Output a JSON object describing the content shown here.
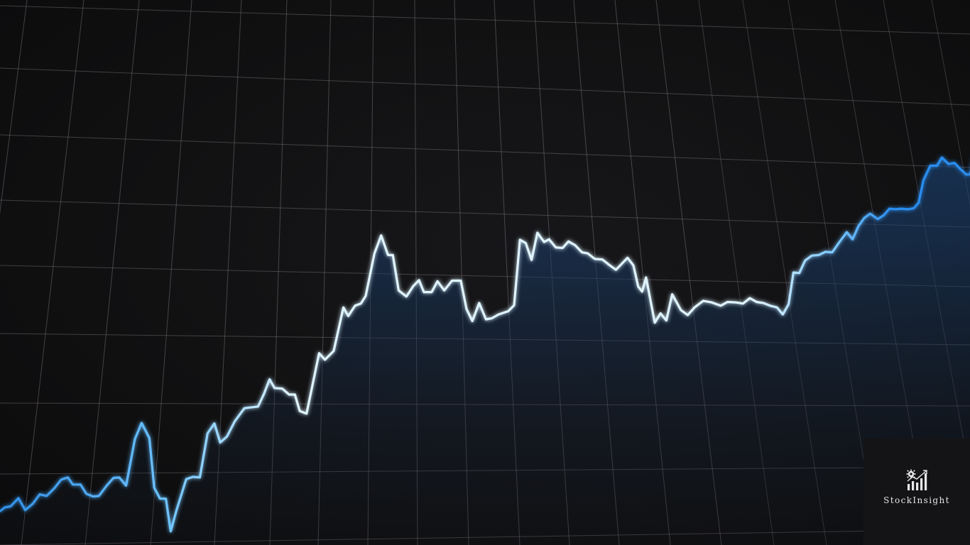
{
  "chart_data": {
    "type": "area",
    "title": "",
    "xlabel": "",
    "ylabel": "",
    "grid": true,
    "legend": "none",
    "xlim": [
      0,
      100
    ],
    "ylim": [
      0,
      100
    ],
    "series": [
      {
        "color_line_start": "#2f8fe6",
        "color_line_mid": "#dff4ff",
        "color_line_end": "#2a8ef0",
        "color_fill": "#1e4f8a",
        "points": [
          [
            0.0,
            6.2
          ],
          [
            0.5,
            6.9
          ],
          [
            1.1,
            7.1
          ],
          [
            1.9,
            8.6
          ],
          [
            2.6,
            6.4
          ],
          [
            3.4,
            7.6
          ],
          [
            4.1,
            9.3
          ],
          [
            4.8,
            9.0
          ],
          [
            5.6,
            10.4
          ],
          [
            6.3,
            12.0
          ],
          [
            7.0,
            12.4
          ],
          [
            7.5,
            11.1
          ],
          [
            8.3,
            11.1
          ],
          [
            8.9,
            9.4
          ],
          [
            9.6,
            8.9
          ],
          [
            10.2,
            9.0
          ],
          [
            11.0,
            10.9
          ],
          [
            11.7,
            12.3
          ],
          [
            12.3,
            12.4
          ],
          [
            13.0,
            10.9
          ],
          [
            13.9,
            19.4
          ],
          [
            14.6,
            22.4
          ],
          [
            15.4,
            19.6
          ],
          [
            15.9,
            10.5
          ],
          [
            16.5,
            8.5
          ],
          [
            17.1,
            8.5
          ],
          [
            17.6,
            2.5
          ],
          [
            18.2,
            6.4
          ],
          [
            19.2,
            12.1
          ],
          [
            19.9,
            12.5
          ],
          [
            20.6,
            12.4
          ],
          [
            21.4,
            20.5
          ],
          [
            22.1,
            22.3
          ],
          [
            22.7,
            18.8
          ],
          [
            23.4,
            19.9
          ],
          [
            24.2,
            22.7
          ],
          [
            25.2,
            25.1
          ],
          [
            26.1,
            25.3
          ],
          [
            26.6,
            25.4
          ],
          [
            27.2,
            27.7
          ],
          [
            27.8,
            30.4
          ],
          [
            28.3,
            28.8
          ],
          [
            29.1,
            28.7
          ],
          [
            29.8,
            27.6
          ],
          [
            30.4,
            27.6
          ],
          [
            30.9,
            24.6
          ],
          [
            31.6,
            24.1
          ],
          [
            32.9,
            35.2
          ],
          [
            33.5,
            34.0
          ],
          [
            34.4,
            35.6
          ],
          [
            35.4,
            43.6
          ],
          [
            35.9,
            42.0
          ],
          [
            36.6,
            43.9
          ],
          [
            37.2,
            44.3
          ],
          [
            37.7,
            45.7
          ],
          [
            38.6,
            53.5
          ],
          [
            39.3,
            56.8
          ],
          [
            40.0,
            53.2
          ],
          [
            40.5,
            53.2
          ],
          [
            41.1,
            46.7
          ],
          [
            41.9,
            45.6
          ],
          [
            42.6,
            47.5
          ],
          [
            43.2,
            48.6
          ],
          [
            43.7,
            46.4
          ],
          [
            44.5,
            46.4
          ],
          [
            45.1,
            48.4
          ],
          [
            45.8,
            46.7
          ],
          [
            46.6,
            48.5
          ],
          [
            47.5,
            48.5
          ],
          [
            48.1,
            43.3
          ],
          [
            48.7,
            41.1
          ],
          [
            49.4,
            44.4
          ],
          [
            50.1,
            41.4
          ],
          [
            50.7,
            41.6
          ],
          [
            51.4,
            42.3
          ],
          [
            52.4,
            42.9
          ],
          [
            53.0,
            44.0
          ],
          [
            53.6,
            56.0
          ],
          [
            54.2,
            55.4
          ],
          [
            54.8,
            52.3
          ],
          [
            55.4,
            57.3
          ],
          [
            56.1,
            55.6
          ],
          [
            56.6,
            56.1
          ],
          [
            57.3,
            54.6
          ],
          [
            58.0,
            54.5
          ],
          [
            58.6,
            55.7
          ],
          [
            59.3,
            55.0
          ],
          [
            60.0,
            53.7
          ],
          [
            60.6,
            53.5
          ],
          [
            61.3,
            52.5
          ],
          [
            62.1,
            52.4
          ],
          [
            62.8,
            51.4
          ],
          [
            63.5,
            50.5
          ],
          [
            64.1,
            51.6
          ],
          [
            64.7,
            52.7
          ],
          [
            65.3,
            51.3
          ],
          [
            65.8,
            47.4
          ],
          [
            66.2,
            46.5
          ],
          [
            66.6,
            49.1
          ],
          [
            67.5,
            40.8
          ],
          [
            68.1,
            42.5
          ],
          [
            68.7,
            41.2
          ],
          [
            69.3,
            46.0
          ],
          [
            70.2,
            43.1
          ],
          [
            70.9,
            42.2
          ],
          [
            71.6,
            43.6
          ],
          [
            72.5,
            44.8
          ],
          [
            73.4,
            44.5
          ],
          [
            74.3,
            43.9
          ],
          [
            75.0,
            44.6
          ],
          [
            75.9,
            44.5
          ],
          [
            76.6,
            44.3
          ],
          [
            77.3,
            45.3
          ],
          [
            78.0,
            44.6
          ],
          [
            78.7,
            44.4
          ],
          [
            79.4,
            43.9
          ],
          [
            80.1,
            43.6
          ],
          [
            80.7,
            42.3
          ],
          [
            81.3,
            44.2
          ],
          [
            81.8,
            50.0
          ],
          [
            82.4,
            49.9
          ],
          [
            83.0,
            52.2
          ],
          [
            83.7,
            53.1
          ],
          [
            84.4,
            53.2
          ],
          [
            85.1,
            53.8
          ],
          [
            85.8,
            53.7
          ],
          [
            86.5,
            55.5
          ],
          [
            87.3,
            57.4
          ],
          [
            87.9,
            56.1
          ],
          [
            88.5,
            58.5
          ],
          [
            89.1,
            60.0
          ],
          [
            89.7,
            60.8
          ],
          [
            90.5,
            59.8
          ],
          [
            91.1,
            60.5
          ],
          [
            91.7,
            61.7
          ],
          [
            92.3,
            61.6
          ],
          [
            92.9,
            61.7
          ],
          [
            93.6,
            61.6
          ],
          [
            94.2,
            61.8
          ],
          [
            94.7,
            62.8
          ],
          [
            95.2,
            66.9
          ],
          [
            95.9,
            69.6
          ],
          [
            96.6,
            69.6
          ],
          [
            97.1,
            71.1
          ],
          [
            97.8,
            69.9
          ],
          [
            98.4,
            70.1
          ],
          [
            99.0,
            69.0
          ],
          [
            99.6,
            68.0
          ],
          [
            100.0,
            68.0
          ],
          [
            100.6,
            72.3
          ],
          [
            101.3,
            72.4
          ],
          [
            101.9,
            73.5
          ],
          [
            102.6,
            74.1
          ],
          [
            103.2,
            75.8
          ],
          [
            103.9,
            74.4
          ]
        ]
      }
    ]
  },
  "brand": {
    "name": "StockInsight",
    "logo_icon": "gear-and-bar-chart-icon",
    "color_text": "#e6e6e6",
    "color_panel": "#141416"
  }
}
